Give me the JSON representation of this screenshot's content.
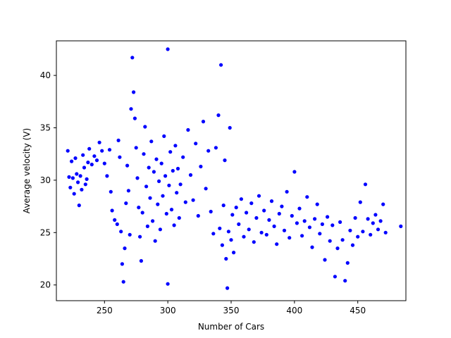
{
  "chart_data": {
    "type": "scatter",
    "xlabel": "Number of Cars",
    "ylabel": "Average velocity (V)",
    "xlim": [
      212,
      488
    ],
    "ylim": [
      18.5,
      43.3
    ],
    "xticks": [
      250,
      300,
      350,
      400,
      450
    ],
    "yticks": [
      20,
      25,
      30,
      35,
      40
    ],
    "grid": false,
    "legend": "none",
    "series_color": "#0000ff",
    "points": [
      [
        221,
        32.8
      ],
      [
        222,
        30.3
      ],
      [
        223,
        29.3
      ],
      [
        224,
        31.8
      ],
      [
        225,
        30.2
      ],
      [
        226,
        28.7
      ],
      [
        227,
        32.1
      ],
      [
        228,
        30.6
      ],
      [
        229,
        29.8
      ],
      [
        230,
        27.6
      ],
      [
        231,
        30.4
      ],
      [
        232,
        29.1
      ],
      [
        233,
        32.4
      ],
      [
        234,
        31.2
      ],
      [
        235,
        29.6
      ],
      [
        236,
        30.1
      ],
      [
        237,
        31.7
      ],
      [
        238,
        33.0
      ],
      [
        240,
        31.5
      ],
      [
        242,
        32.3
      ],
      [
        244,
        31.9
      ],
      [
        246,
        33.6
      ],
      [
        248,
        32.8
      ],
      [
        250,
        31.6
      ],
      [
        252,
        30.4
      ],
      [
        254,
        32.9
      ],
      [
        255,
        28.9
      ],
      [
        256,
        27.1
      ],
      [
        258,
        26.2
      ],
      [
        260,
        25.8
      ],
      [
        261,
        33.8
      ],
      [
        262,
        32.2
      ],
      [
        263,
        25.1
      ],
      [
        264,
        22.0
      ],
      [
        265,
        20.3
      ],
      [
        266,
        23.5
      ],
      [
        267,
        27.8
      ],
      [
        268,
        31.4
      ],
      [
        269,
        29.0
      ],
      [
        270,
        24.8
      ],
      [
        271,
        36.8
      ],
      [
        272,
        41.7
      ],
      [
        273,
        38.4
      ],
      [
        274,
        35.9
      ],
      [
        275,
        33.1
      ],
      [
        276,
        30.2
      ],
      [
        277,
        27.4
      ],
      [
        278,
        24.6
      ],
      [
        279,
        22.3
      ],
      [
        280,
        26.9
      ],
      [
        281,
        32.5
      ],
      [
        282,
        35.1
      ],
      [
        283,
        29.4
      ],
      [
        284,
        25.6
      ],
      [
        285,
        31.2
      ],
      [
        286,
        28.3
      ],
      [
        287,
        33.7
      ],
      [
        288,
        26.1
      ],
      [
        289,
        30.8
      ],
      [
        290,
        24.2
      ],
      [
        291,
        32.0
      ],
      [
        292,
        27.7
      ],
      [
        293,
        29.9
      ],
      [
        294,
        25.3
      ],
      [
        295,
        31.6
      ],
      [
        296,
        28.5
      ],
      [
        297,
        34.2
      ],
      [
        298,
        30.4
      ],
      [
        299,
        26.8
      ],
      [
        300,
        42.5
      ],
      [
        300,
        20.1
      ],
      [
        301,
        29.5
      ],
      [
        302,
        32.7
      ],
      [
        303,
        27.2
      ],
      [
        304,
        30.9
      ],
      [
        305,
        25.7
      ],
      [
        306,
        33.3
      ],
      [
        307,
        28.8
      ],
      [
        308,
        31.1
      ],
      [
        309,
        26.4
      ],
      [
        310,
        29.6
      ],
      [
        312,
        32.2
      ],
      [
        314,
        27.9
      ],
      [
        316,
        34.8
      ],
      [
        318,
        30.5
      ],
      [
        320,
        28.1
      ],
      [
        322,
        33.5
      ],
      [
        324,
        26.6
      ],
      [
        326,
        31.3
      ],
      [
        328,
        35.6
      ],
      [
        330,
        29.2
      ],
      [
        332,
        32.8
      ],
      [
        334,
        27.0
      ],
      [
        336,
        24.9
      ],
      [
        338,
        33.1
      ],
      [
        340,
        36.2
      ],
      [
        341,
        25.4
      ],
      [
        342,
        41.0
      ],
      [
        343,
        23.8
      ],
      [
        344,
        27.6
      ],
      [
        345,
        31.9
      ],
      [
        346,
        22.5
      ],
      [
        347,
        19.7
      ],
      [
        348,
        25.1
      ],
      [
        349,
        35.0
      ],
      [
        350,
        24.3
      ],
      [
        351,
        26.7
      ],
      [
        352,
        23.1
      ],
      [
        354,
        27.4
      ],
      [
        356,
        25.8
      ],
      [
        358,
        28.2
      ],
      [
        360,
        24.6
      ],
      [
        362,
        26.9
      ],
      [
        364,
        25.3
      ],
      [
        366,
        27.8
      ],
      [
        368,
        24.1
      ],
      [
        370,
        26.4
      ],
      [
        372,
        28.5
      ],
      [
        374,
        25.0
      ],
      [
        376,
        27.1
      ],
      [
        378,
        24.8
      ],
      [
        380,
        26.2
      ],
      [
        382,
        28.0
      ],
      [
        384,
        25.6
      ],
      [
        386,
        23.9
      ],
      [
        388,
        26.8
      ],
      [
        390,
        27.5
      ],
      [
        392,
        25.2
      ],
      [
        394,
        28.9
      ],
      [
        396,
        24.5
      ],
      [
        398,
        26.6
      ],
      [
        400,
        30.8
      ],
      [
        402,
        25.9
      ],
      [
        404,
        27.3
      ],
      [
        406,
        24.7
      ],
      [
        408,
        26.1
      ],
      [
        410,
        28.4
      ],
      [
        412,
        25.5
      ],
      [
        414,
        23.6
      ],
      [
        416,
        26.3
      ],
      [
        418,
        27.7
      ],
      [
        420,
        24.9
      ],
      [
        422,
        25.8
      ],
      [
        424,
        22.4
      ],
      [
        426,
        26.5
      ],
      [
        428,
        24.2
      ],
      [
        430,
        25.7
      ],
      [
        432,
        20.8
      ],
      [
        434,
        23.5
      ],
      [
        436,
        26.0
      ],
      [
        438,
        24.3
      ],
      [
        440,
        20.4
      ],
      [
        442,
        22.1
      ],
      [
        444,
        25.2
      ],
      [
        446,
        23.8
      ],
      [
        448,
        26.4
      ],
      [
        450,
        24.6
      ],
      [
        452,
        27.9
      ],
      [
        454,
        25.1
      ],
      [
        456,
        29.6
      ],
      [
        458,
        26.3
      ],
      [
        460,
        24.8
      ],
      [
        462,
        25.9
      ],
      [
        464,
        26.7
      ],
      [
        466,
        25.3
      ],
      [
        468,
        26.1
      ],
      [
        470,
        27.7
      ],
      [
        472,
        25.0
      ],
      [
        484,
        25.6
      ]
    ]
  }
}
